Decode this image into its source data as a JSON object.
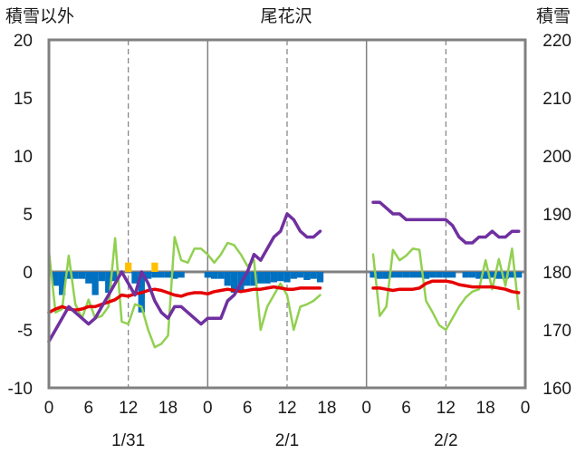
{
  "chart_data": {
    "type": "line",
    "title": "尾花沢",
    "ylabel_left": "積雪以外",
    "ylabel_right": "積雪",
    "ylim_left": [
      -10,
      20
    ],
    "ylim_right": [
      160,
      220
    ],
    "yticks_left": [
      "20",
      "15",
      "10",
      "5",
      "0",
      "-5",
      "-10"
    ],
    "yticks_right": [
      "220",
      "210",
      "200",
      "190",
      "180",
      "170",
      "160"
    ],
    "xtick_labels": [
      "0",
      "6",
      "12",
      "18",
      "0",
      "6",
      "12",
      "18",
      "0",
      "6",
      "12",
      "18",
      "0"
    ],
    "date_labels": [
      "1/31",
      "2/1",
      "2/2"
    ],
    "grid": true,
    "colors": {
      "snow_depth": "#7030A0",
      "temperature": "#E60000",
      "green_series": "#92D050",
      "bars_blue": "#0070C0",
      "bars_yellow": "#FFC000",
      "frame": "#808080",
      "grid": "#808080"
    },
    "snow_depth_right": [
      [
        0,
        168
      ],
      [
        1,
        170
      ],
      [
        2,
        172
      ],
      [
        3,
        174
      ],
      [
        4,
        173
      ],
      [
        5,
        172
      ],
      [
        6,
        171
      ],
      [
        7,
        172
      ],
      [
        8,
        174
      ],
      [
        9,
        176
      ],
      [
        10,
        178
      ],
      [
        11,
        180
      ],
      [
        12,
        178
      ],
      [
        13,
        176
      ],
      [
        14,
        180
      ],
      [
        15,
        178
      ],
      [
        16,
        175
      ],
      [
        17,
        173
      ],
      [
        18,
        172
      ],
      [
        19,
        174
      ],
      [
        20,
        174
      ],
      [
        21,
        173
      ],
      [
        22,
        172
      ],
      [
        23,
        171
      ],
      [
        24,
        172
      ],
      [
        25,
        172
      ],
      [
        26,
        172
      ],
      [
        27,
        175
      ],
      [
        28,
        176
      ],
      [
        29,
        178
      ],
      [
        30,
        180
      ],
      [
        31,
        183
      ],
      [
        32,
        182
      ],
      [
        33,
        184
      ],
      [
        34,
        186
      ],
      [
        35,
        187
      ],
      [
        36,
        190
      ],
      [
        37,
        189
      ],
      [
        38,
        187
      ],
      [
        39,
        186
      ],
      [
        40,
        186
      ],
      [
        41,
        187
      ],
      [
        49,
        192
      ],
      [
        50,
        192
      ],
      [
        51,
        191
      ],
      [
        52,
        190
      ],
      [
        53,
        190
      ],
      [
        54,
        189
      ],
      [
        55,
        189
      ],
      [
        56,
        189
      ],
      [
        57,
        189
      ],
      [
        58,
        189
      ],
      [
        59,
        189
      ],
      [
        60,
        189
      ],
      [
        61,
        188
      ],
      [
        62,
        186
      ],
      [
        63,
        185
      ],
      [
        64,
        185
      ],
      [
        65,
        186
      ],
      [
        66,
        186
      ],
      [
        67,
        187
      ],
      [
        68,
        186
      ],
      [
        69,
        186
      ],
      [
        70,
        187
      ],
      [
        71,
        187
      ]
    ],
    "temperature_left": [
      [
        0,
        -3.5
      ],
      [
        1,
        -3.2
      ],
      [
        2,
        -3.0
      ],
      [
        3,
        -3.2
      ],
      [
        4,
        -3.3
      ],
      [
        5,
        -3.2
      ],
      [
        6,
        -3.0
      ],
      [
        7,
        -3.0
      ],
      [
        8,
        -2.8
      ],
      [
        9,
        -2.6
      ],
      [
        10,
        -2.4
      ],
      [
        11,
        -2.0
      ],
      [
        12,
        -2.1
      ],
      [
        13,
        -1.9
      ],
      [
        14,
        -1.8
      ],
      [
        15,
        -1.6
      ],
      [
        16,
        -1.5
      ],
      [
        17,
        -1.6
      ],
      [
        18,
        -1.8
      ],
      [
        19,
        -2.0
      ],
      [
        20,
        -2.1
      ],
      [
        21,
        -1.9
      ],
      [
        22,
        -1.8
      ],
      [
        23,
        -1.8
      ],
      [
        24,
        -1.9
      ],
      [
        25,
        -1.7
      ],
      [
        26,
        -1.6
      ],
      [
        27,
        -1.5
      ],
      [
        28,
        -1.6
      ],
      [
        29,
        -1.7
      ],
      [
        30,
        -1.6
      ],
      [
        31,
        -1.5
      ],
      [
        32,
        -1.5
      ],
      [
        33,
        -1.4
      ],
      [
        34,
        -1.3
      ],
      [
        35,
        -1.4
      ],
      [
        36,
        -1.5
      ],
      [
        37,
        -1.5
      ],
      [
        38,
        -1.4
      ],
      [
        39,
        -1.4
      ],
      [
        40,
        -1.4
      ],
      [
        41,
        -1.4
      ],
      [
        49,
        -1.4
      ],
      [
        50,
        -1.4
      ],
      [
        51,
        -1.5
      ],
      [
        52,
        -1.6
      ],
      [
        53,
        -1.5
      ],
      [
        54,
        -1.5
      ],
      [
        55,
        -1.5
      ],
      [
        56,
        -1.4
      ],
      [
        57,
        -1.0
      ],
      [
        58,
        -0.8
      ],
      [
        59,
        -0.8
      ],
      [
        60,
        -0.8
      ],
      [
        61,
        -0.9
      ],
      [
        62,
        -1.1
      ],
      [
        63,
        -1.2
      ],
      [
        64,
        -1.3
      ],
      [
        65,
        -1.3
      ],
      [
        66,
        -1.3
      ],
      [
        67,
        -1.3
      ],
      [
        68,
        -1.4
      ],
      [
        69,
        -1.5
      ],
      [
        70,
        -1.7
      ],
      [
        71,
        -1.8
      ]
    ],
    "green_series_left": [
      [
        0,
        1.8
      ],
      [
        1,
        -3.5
      ],
      [
        2,
        -3.2
      ],
      [
        3,
        1.4
      ],
      [
        4,
        -2.8
      ],
      [
        5,
        -4.0
      ],
      [
        6,
        -2.4
      ],
      [
        7,
        -4.0
      ],
      [
        8,
        -3.8
      ],
      [
        9,
        -3.0
      ],
      [
        10,
        2.9
      ],
      [
        11,
        -4.3
      ],
      [
        12,
        -4.5
      ],
      [
        13,
        -2.8
      ],
      [
        14,
        -3.0
      ],
      [
        15,
        -5.0
      ],
      [
        16,
        -6.5
      ],
      [
        17,
        -6.2
      ],
      [
        18,
        -5.5
      ],
      [
        19,
        3.0
      ],
      [
        20,
        1.0
      ],
      [
        21,
        0.8
      ],
      [
        22,
        2.0
      ],
      [
        23,
        2.0
      ],
      [
        24,
        1.5
      ],
      [
        25,
        0.8
      ],
      [
        26,
        1.5
      ],
      [
        27,
        2.5
      ],
      [
        28,
        2.3
      ],
      [
        29,
        1.5
      ],
      [
        30,
        0.5
      ],
      [
        31,
        1.0
      ],
      [
        32,
        -5.0
      ],
      [
        33,
        -3.0
      ],
      [
        34,
        -2.0
      ],
      [
        35,
        -1.0
      ],
      [
        36,
        -2.0
      ],
      [
        37,
        -5.0
      ],
      [
        38,
        -3.0
      ],
      [
        39,
        -2.8
      ],
      [
        40,
        -2.5
      ],
      [
        41,
        -2.0
      ],
      [
        49,
        1.5
      ],
      [
        50,
        -3.8
      ],
      [
        51,
        -3.0
      ],
      [
        52,
        1.9
      ],
      [
        53,
        1.0
      ],
      [
        54,
        1.4
      ],
      [
        55,
        2.0
      ],
      [
        56,
        1.9
      ],
      [
        57,
        -2.5
      ],
      [
        58,
        -3.5
      ],
      [
        59,
        -4.6
      ],
      [
        60,
        -5.0
      ],
      [
        61,
        -4.0
      ],
      [
        62,
        -3.0
      ],
      [
        63,
        -2.2
      ],
      [
        64,
        -1.7
      ],
      [
        65,
        -1.5
      ],
      [
        66,
        1.0
      ],
      [
        67,
        -1.5
      ],
      [
        68,
        1.1
      ],
      [
        69,
        -1.2
      ],
      [
        70,
        2.0
      ],
      [
        71,
        -3.2
      ]
    ],
    "bars_blue_left": [
      [
        1,
        -1.2
      ],
      [
        2,
        -2.0
      ],
      [
        3,
        -0.6
      ],
      [
        4,
        -0.6
      ],
      [
        5,
        -0.6
      ],
      [
        6,
        -1.0
      ],
      [
        7,
        -2.0
      ],
      [
        8,
        -0.8
      ],
      [
        9,
        -1.8
      ],
      [
        10,
        -0.8
      ],
      [
        13,
        -1.0
      ],
      [
        14,
        -3.5
      ],
      [
        15,
        -0.6
      ],
      [
        16,
        -0.5
      ],
      [
        17,
        -0.5
      ],
      [
        18,
        -0.5
      ],
      [
        19,
        -0.6
      ],
      [
        20,
        -0.5
      ],
      [
        24,
        -0.5
      ],
      [
        25,
        -0.6
      ],
      [
        26,
        -0.6
      ],
      [
        27,
        -1.2
      ],
      [
        28,
        -1.8
      ],
      [
        29,
        -1.6
      ],
      [
        30,
        -1.2
      ],
      [
        31,
        -1.2
      ],
      [
        32,
        -1.0
      ],
      [
        33,
        -1.0
      ],
      [
        34,
        -0.9
      ],
      [
        35,
        -0.8
      ],
      [
        36,
        -0.9
      ],
      [
        37,
        -0.6
      ],
      [
        38,
        -0.5
      ],
      [
        39,
        -0.7
      ],
      [
        40,
        -0.6
      ],
      [
        41,
        -0.9
      ],
      [
        49,
        -0.5
      ],
      [
        50,
        -0.6
      ],
      [
        51,
        -0.6
      ],
      [
        52,
        -0.5
      ],
      [
        53,
        -0.5
      ],
      [
        54,
        -0.5
      ],
      [
        55,
        -0.5
      ],
      [
        56,
        -0.5
      ],
      [
        57,
        -0.6
      ],
      [
        58,
        -0.5
      ],
      [
        59,
        -0.5
      ],
      [
        60,
        -0.5
      ],
      [
        61,
        -0.5
      ],
      [
        63,
        -0.5
      ],
      [
        64,
        -0.5
      ],
      [
        65,
        -0.6
      ],
      [
        66,
        -0.6
      ],
      [
        67,
        -0.5
      ],
      [
        68,
        -0.6
      ],
      [
        69,
        -0.6
      ],
      [
        70,
        -0.5
      ],
      [
        71,
        -0.5
      ]
    ],
    "bars_yellow_left": [
      [
        12,
        0.8
      ],
      [
        16,
        0.8
      ]
    ]
  }
}
